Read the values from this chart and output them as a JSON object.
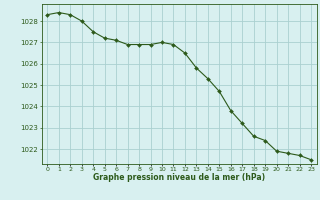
{
  "hours": [
    0,
    1,
    2,
    3,
    4,
    5,
    6,
    7,
    8,
    9,
    10,
    11,
    12,
    13,
    14,
    15,
    16,
    17,
    18,
    19,
    20,
    21,
    22,
    23
  ],
  "pressure": [
    1028.3,
    1028.4,
    1028.3,
    1028.0,
    1027.5,
    1027.2,
    1027.1,
    1026.9,
    1026.9,
    1026.9,
    1027.0,
    1026.9,
    1026.5,
    1025.8,
    1025.3,
    1024.7,
    1023.8,
    1023.2,
    1022.6,
    1022.4,
    1021.9,
    1021.8,
    1021.7,
    1021.5
  ],
  "line_color": "#2d5a1b",
  "marker_color": "#2d5a1b",
  "bg_color": "#d8f0f0",
  "grid_color": "#aad0d0",
  "xlabel": "Graphe pression niveau de la mer (hPa)",
  "xlabel_color": "#2d5a1b",
  "tick_color": "#2d5a1b",
  "ylim": [
    1021.3,
    1028.8
  ],
  "yticks": [
    1022,
    1023,
    1024,
    1025,
    1026,
    1027,
    1028
  ],
  "xlim": [
    -0.5,
    23.5
  ],
  "xticks": [
    0,
    1,
    2,
    3,
    4,
    5,
    6,
    7,
    8,
    9,
    10,
    11,
    12,
    13,
    14,
    15,
    16,
    17,
    18,
    19,
    20,
    21,
    22,
    23
  ],
  "xtick_labels": [
    "0",
    "1",
    "2",
    "3",
    "4",
    "5",
    "6",
    "7",
    "8",
    "9",
    "10",
    "11",
    "12",
    "13",
    "14",
    "15",
    "16",
    "17",
    "18",
    "19",
    "20",
    "21",
    "22",
    "23"
  ]
}
